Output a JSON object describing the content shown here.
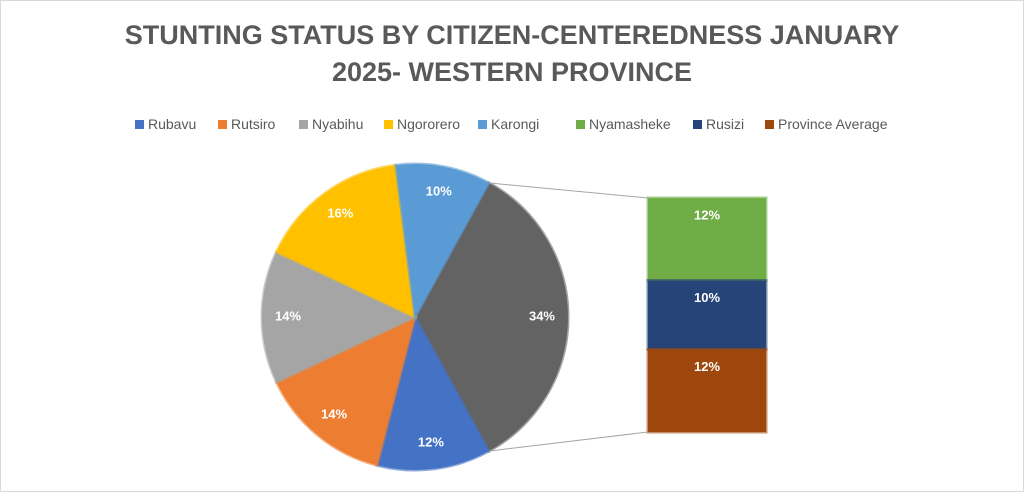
{
  "chart_data": {
    "type": "bar_of_pie",
    "title": [
      "STUNTING STATUS BY CITIZEN-CENTEREDNESS JANUARY",
      "2025- WESTERN PROVINCE"
    ],
    "pie": {
      "categories": [
        "Rubavu",
        "Rutsiro",
        "Nyabihu",
        "Ngororero",
        "Karongi"
      ],
      "values": [
        12,
        14,
        14,
        16,
        10
      ],
      "value_labels": [
        "12%",
        "14%",
        "14%",
        "16%",
        "10%"
      ],
      "colors": [
        "#4472c4",
        "#ed7d31",
        "#a5a5a5",
        "#ffc000",
        "#5b9bd5"
      ]
    },
    "other": {
      "value": 34,
      "value_label": "34%",
      "color": "#636363"
    },
    "bar": {
      "categories": [
        "Nyamasheke",
        "Rusizi",
        "Province Average"
      ],
      "values": [
        12,
        10,
        12
      ],
      "value_labels": [
        "12%",
        "10%",
        "12%"
      ],
      "colors": [
        "#70ad47",
        "#264478",
        "#9e480e"
      ]
    }
  }
}
